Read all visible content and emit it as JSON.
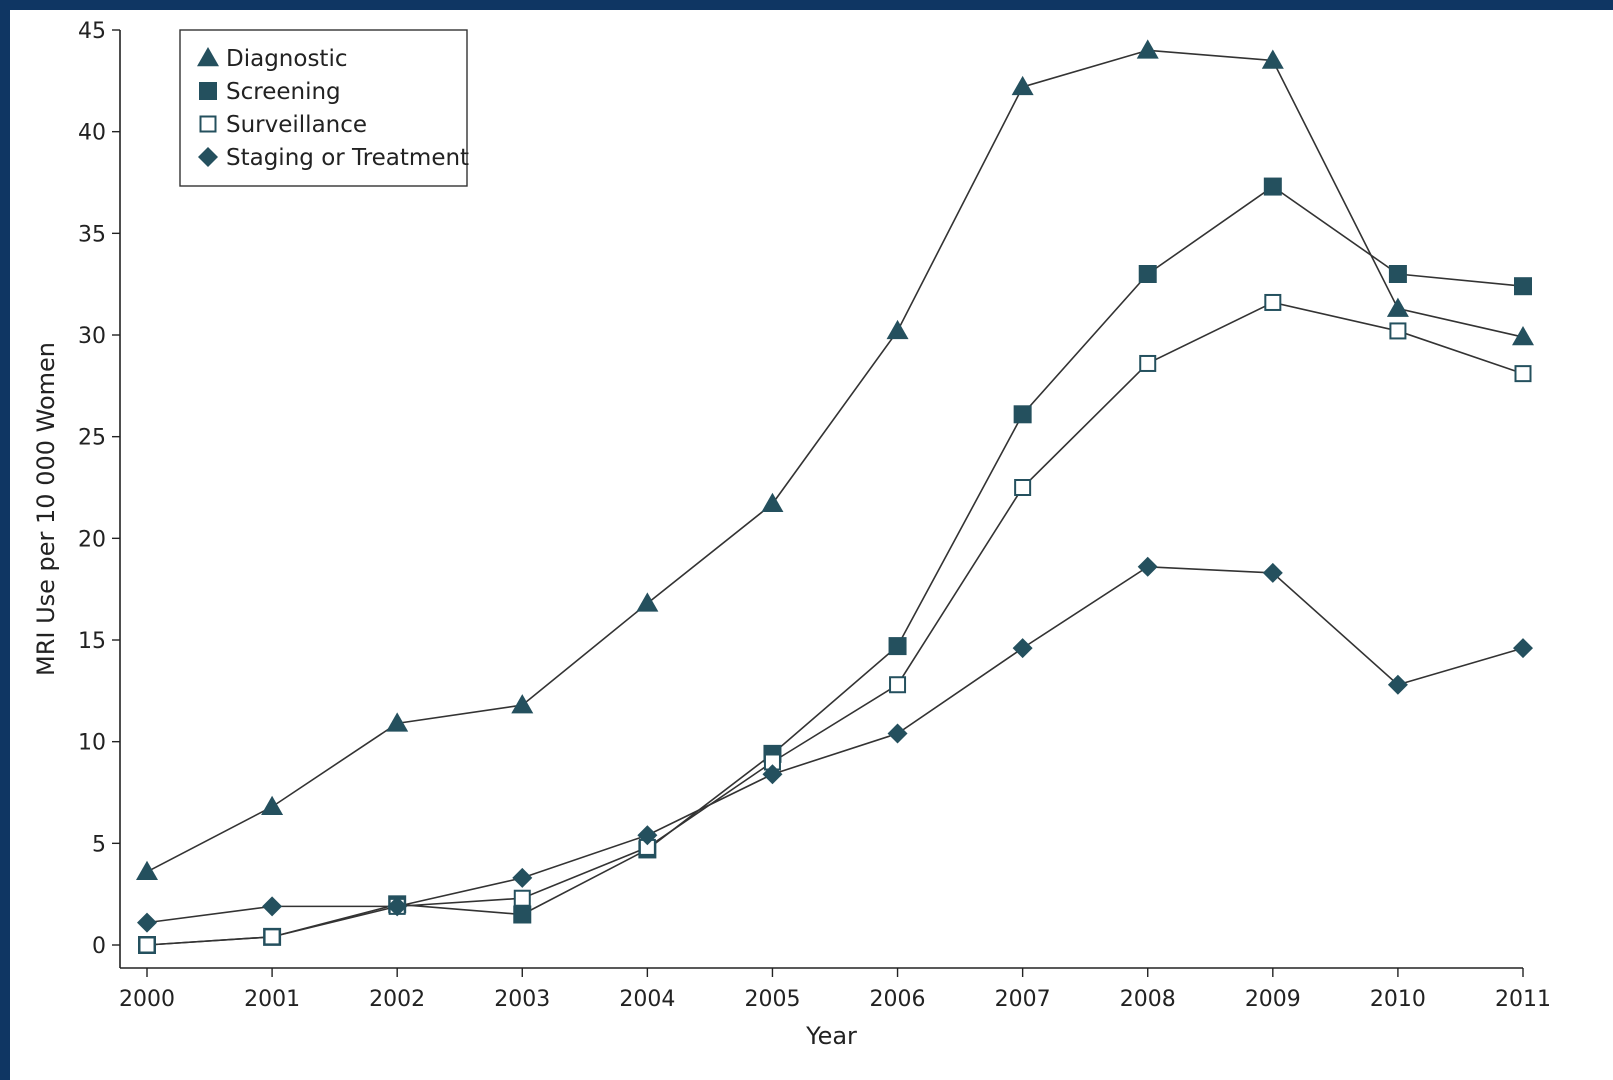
{
  "chart_data": {
    "type": "line",
    "xlabel": "Year",
    "ylabel": "MRI Use per 10 000 Women",
    "ylim": [
      0,
      45
    ],
    "yticks": [
      0,
      5,
      10,
      15,
      20,
      25,
      30,
      35,
      40,
      45
    ],
    "x": [
      "2000",
      "2001",
      "2002",
      "2003",
      "2004",
      "2005",
      "2006",
      "2007",
      "2008",
      "2009",
      "2010",
      "2011"
    ],
    "grid": false,
    "legend_position": "top-left",
    "series": [
      {
        "name": "Diagnostic",
        "marker": "triangle",
        "values": [
          3.6,
          6.8,
          10.9,
          11.8,
          16.8,
          21.7,
          30.2,
          42.2,
          44.0,
          43.5,
          31.3,
          29.9
        ]
      },
      {
        "name": "Screening",
        "marker": "square-filled",
        "values": [
          0.0,
          0.4,
          2.0,
          1.5,
          4.7,
          9.4,
          14.7,
          26.1,
          33.0,
          37.3,
          33.0,
          32.4
        ]
      },
      {
        "name": "Surveillance",
        "marker": "square-open",
        "values": [
          0.0,
          0.4,
          1.9,
          2.3,
          4.8,
          9.0,
          12.8,
          22.5,
          28.6,
          31.6,
          30.2,
          28.1
        ]
      },
      {
        "name": "Staging or Treatment",
        "marker": "diamond",
        "values": [
          1.1,
          1.9,
          1.9,
          3.3,
          5.4,
          8.4,
          10.4,
          14.6,
          18.6,
          18.3,
          12.8,
          14.6
        ]
      }
    ],
    "colors": {
      "marker": "#24505e",
      "line": "#333333",
      "axis": "#222222"
    }
  }
}
